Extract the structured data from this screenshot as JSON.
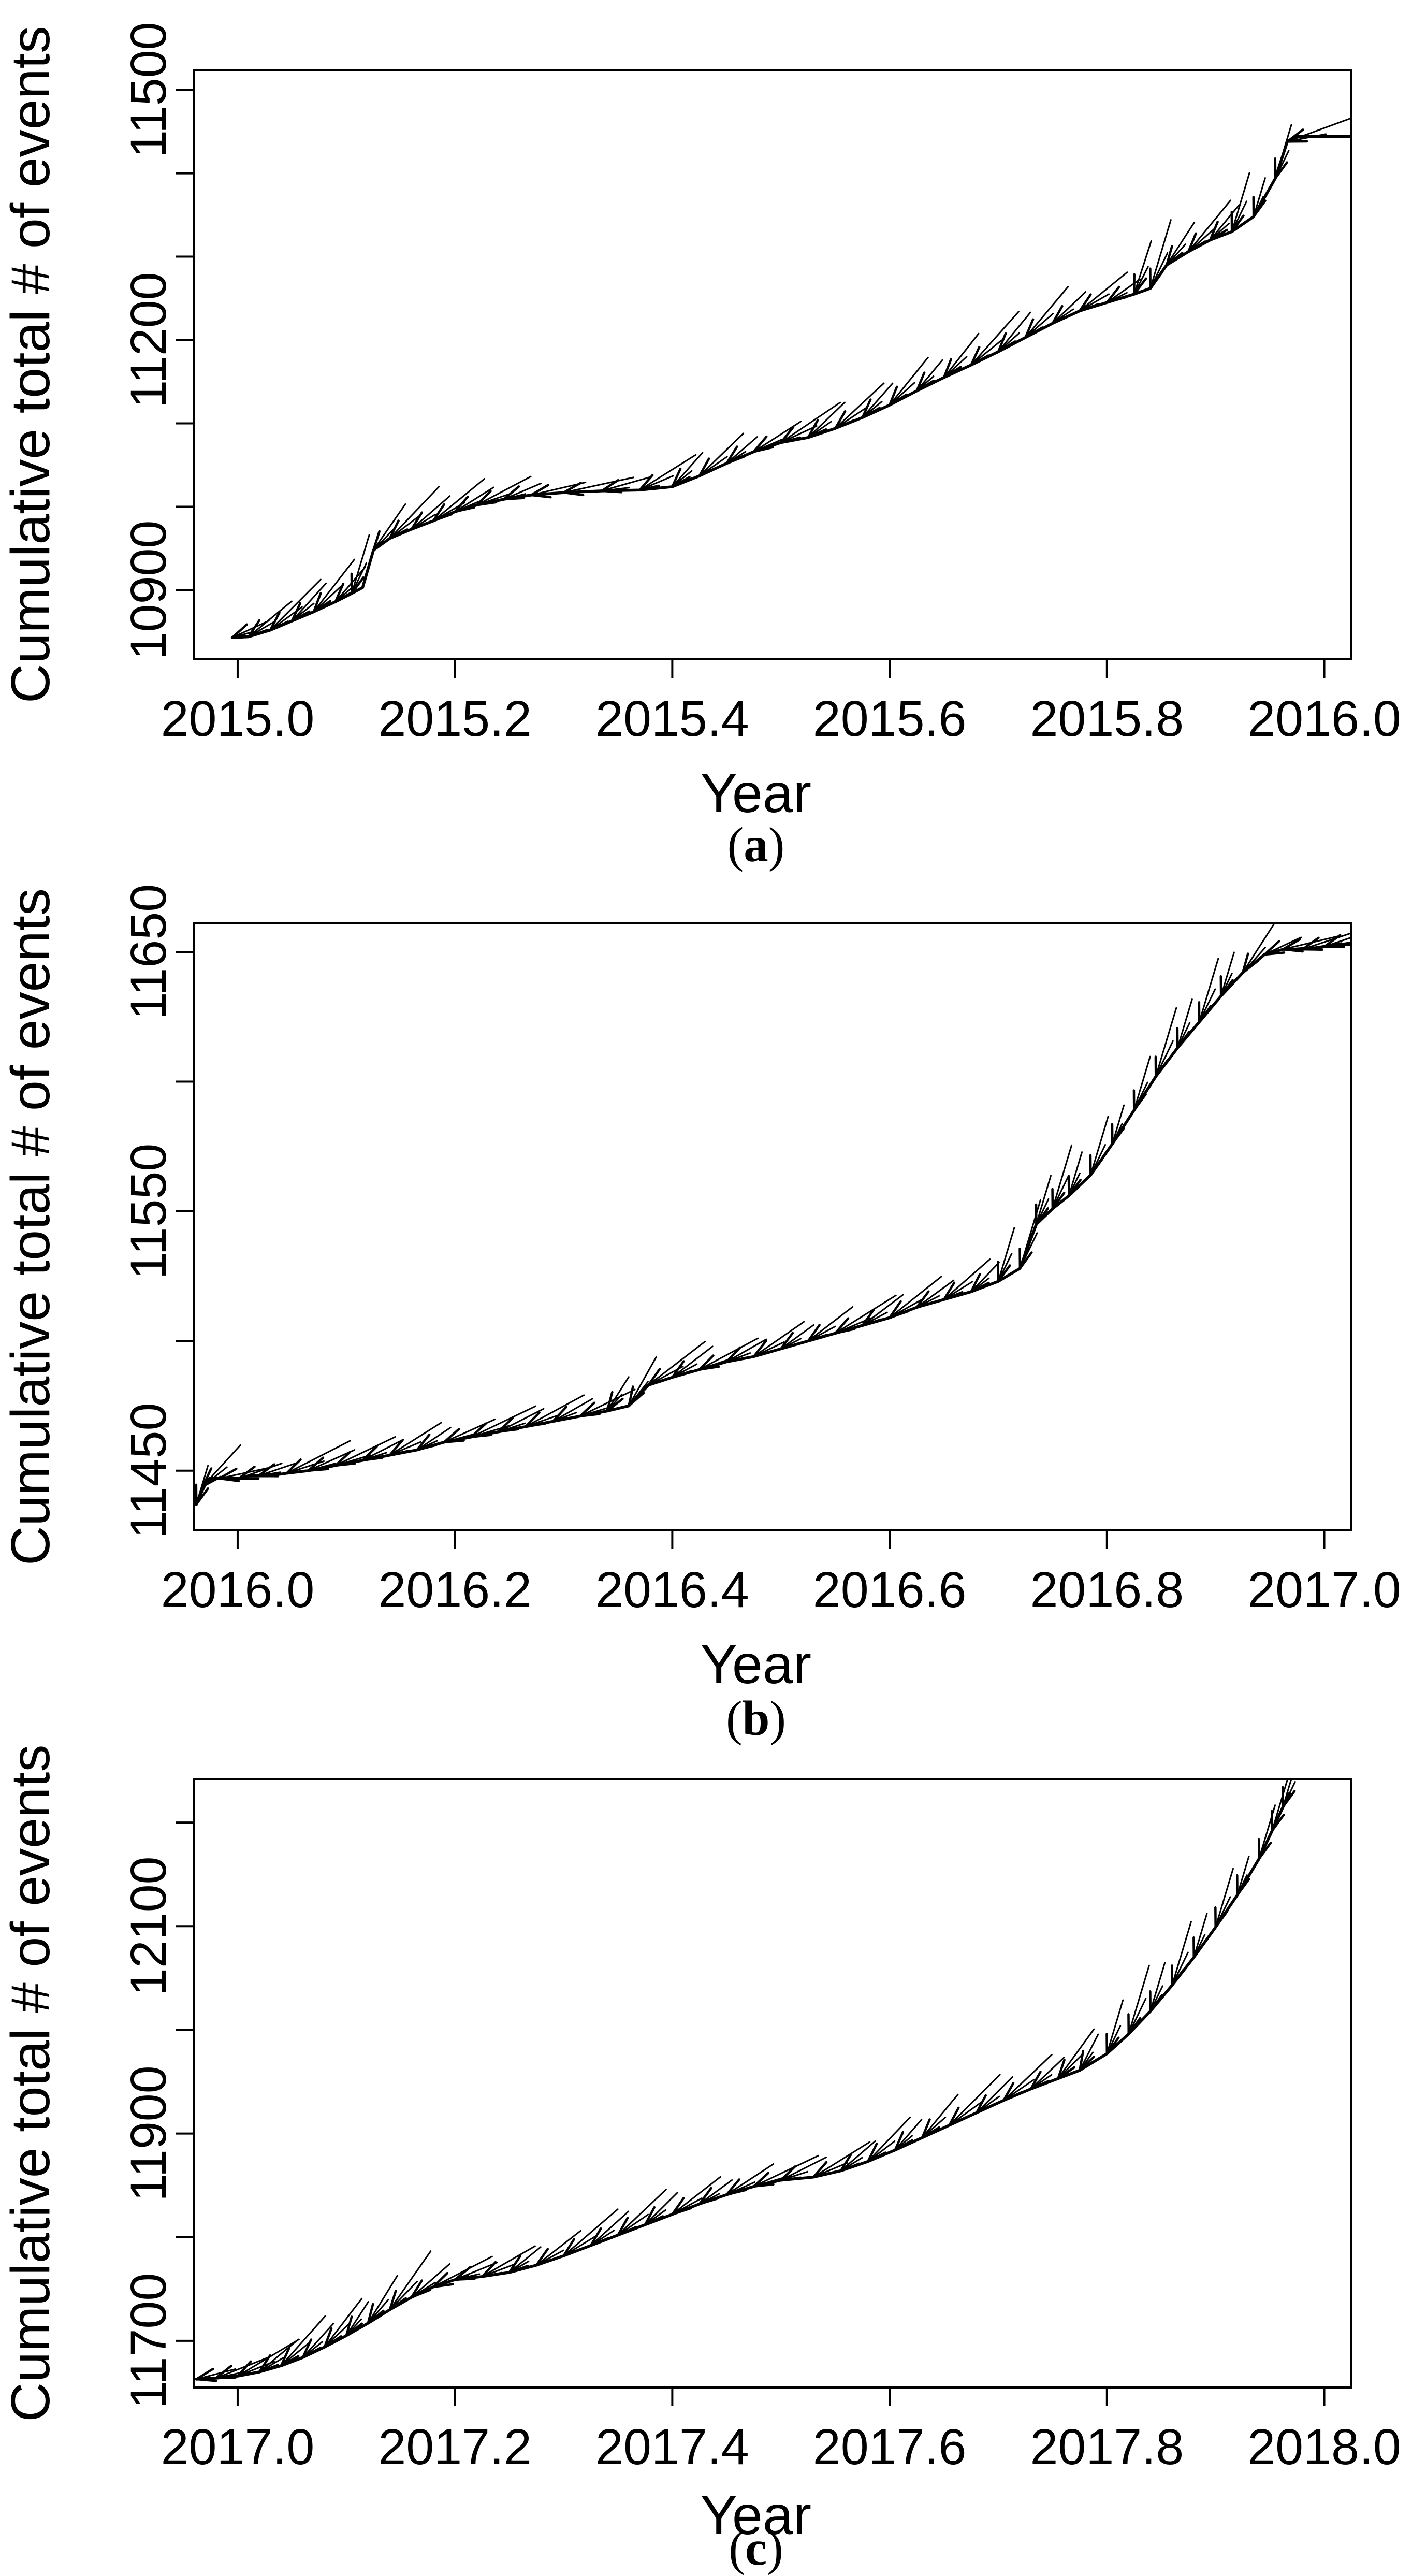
{
  "page": {
    "background_color": "#ffffff",
    "ink_color": "#000000",
    "description": "Three stacked base-R style plots of cumulative earthquake/event counts versus time, panels (a) 2015, (b) 2016, (c) 2017, each curve decorated with small feathered forecast arrows pointing along the curve"
  },
  "chart_data": [
    {
      "panel": "a",
      "type": "line",
      "title": "",
      "xlabel": "Year",
      "ylabel": "Cumulative total # of events",
      "caption_letter": "a",
      "caption_text": "(a)",
      "legend": "none",
      "grid": false,
      "marker_style": "feathered-arrow-barbs-along-curve",
      "xlim": [
        2014.96,
        2016.025
      ],
      "ylim": [
        10817,
        11524
      ],
      "x_ticks": [
        {
          "v": 2015.0,
          "label": "2015.0"
        },
        {
          "v": 2015.2,
          "label": "2015.2"
        },
        {
          "v": 2015.4,
          "label": "2015.4"
        },
        {
          "v": 2015.6,
          "label": "2015.6"
        },
        {
          "v": 2015.8,
          "label": "2015.8"
        },
        {
          "v": 2016.0,
          "label": "2016.0"
        }
      ],
      "y_ticks": [
        {
          "v": 10900,
          "label": "10900"
        },
        {
          "v": 11000,
          "label": ""
        },
        {
          "v": 11100,
          "label": ""
        },
        {
          "v": 11200,
          "label": "11200"
        },
        {
          "v": 11300,
          "label": ""
        },
        {
          "v": 11400,
          "label": ""
        },
        {
          "v": 11500,
          "label": "11500"
        }
      ],
      "points": [
        [
          2014.995,
          10843
        ],
        [
          2015.01,
          10844
        ],
        [
          2015.03,
          10852
        ],
        [
          2015.05,
          10863
        ],
        [
          2015.07,
          10874
        ],
        [
          2015.09,
          10886
        ],
        [
          2015.105,
          10896
        ],
        [
          2015.115,
          10903
        ],
        [
          2015.125,
          10948
        ],
        [
          2015.14,
          10962
        ],
        [
          2015.16,
          10973
        ],
        [
          2015.18,
          10983
        ],
        [
          2015.2,
          10994
        ],
        [
          2015.22,
          11002
        ],
        [
          2015.245,
          11009
        ],
        [
          2015.27,
          11014
        ],
        [
          2015.3,
          11017
        ],
        [
          2015.335,
          11019
        ],
        [
          2015.37,
          11020
        ],
        [
          2015.4,
          11024
        ],
        [
          2015.425,
          11037
        ],
        [
          2015.45,
          11052
        ],
        [
          2015.475,
          11066
        ],
        [
          2015.5,
          11077
        ],
        [
          2015.525,
          11083
        ],
        [
          2015.55,
          11094
        ],
        [
          2015.575,
          11107
        ],
        [
          2015.6,
          11122
        ],
        [
          2015.625,
          11139
        ],
        [
          2015.65,
          11155
        ],
        [
          2015.675,
          11170
        ],
        [
          2015.7,
          11186
        ],
        [
          2015.725,
          11203
        ],
        [
          2015.75,
          11220
        ],
        [
          2015.775,
          11235
        ],
        [
          2015.8,
          11245
        ],
        [
          2015.825,
          11255
        ],
        [
          2015.84,
          11262
        ],
        [
          2015.855,
          11290
        ],
        [
          2015.875,
          11306
        ],
        [
          2015.895,
          11320
        ],
        [
          2015.915,
          11330
        ],
        [
          2015.935,
          11348
        ],
        [
          2015.955,
          11394
        ],
        [
          2015.966,
          11438
        ],
        [
          2015.975,
          11444
        ],
        [
          2016.025,
          11444
        ]
      ]
    },
    {
      "panel": "b",
      "type": "line",
      "title": "",
      "xlabel": "Year",
      "ylabel": "Cumulative total # of events",
      "caption_letter": "b",
      "caption_text": "(b)",
      "legend": "none",
      "grid": false,
      "marker_style": "feathered-arrow-barbs-along-curve",
      "xlim": [
        2015.96,
        2017.025
      ],
      "ylim": [
        11427,
        11661
      ],
      "x_ticks": [
        {
          "v": 2016.0,
          "label": "2016.0"
        },
        {
          "v": 2016.2,
          "label": "2016.2"
        },
        {
          "v": 2016.4,
          "label": "2016.4"
        },
        {
          "v": 2016.6,
          "label": "2016.6"
        },
        {
          "v": 2016.8,
          "label": "2016.8"
        },
        {
          "v": 2017.0,
          "label": "2017.0"
        }
      ],
      "y_ticks": [
        {
          "v": 11450,
          "label": "11450"
        },
        {
          "v": 11500,
          "label": ""
        },
        {
          "v": 11550,
          "label": "11550"
        },
        {
          "v": 11600,
          "label": ""
        },
        {
          "v": 11650,
          "label": "11650"
        }
      ],
      "points": [
        [
          2015.962,
          11437
        ],
        [
          2015.968,
          11444
        ],
        [
          2015.974,
          11447
        ],
        [
          2015.983,
          11447
        ],
        [
          2015.992,
          11447
        ],
        [
          2016.001,
          11447
        ],
        [
          2016.01,
          11448
        ],
        [
          2016.019,
          11448
        ],
        [
          2016.028,
          11448
        ],
        [
          2016.045,
          11449
        ],
        [
          2016.065,
          11450
        ],
        [
          2016.09,
          11452
        ],
        [
          2016.115,
          11454
        ],
        [
          2016.14,
          11456
        ],
        [
          2016.165,
          11458
        ],
        [
          2016.19,
          11461
        ],
        [
          2016.215,
          11463
        ],
        [
          2016.24,
          11465
        ],
        [
          2016.265,
          11467
        ],
        [
          2016.29,
          11469
        ],
        [
          2016.315,
          11471
        ],
        [
          2016.34,
          11473
        ],
        [
          2016.36,
          11475
        ],
        [
          2016.378,
          11483
        ],
        [
          2016.4,
          11486
        ],
        [
          2016.425,
          11489
        ],
        [
          2016.45,
          11492
        ],
        [
          2016.475,
          11494
        ],
        [
          2016.5,
          11497
        ],
        [
          2016.525,
          11500
        ],
        [
          2016.55,
          11503
        ],
        [
          2016.575,
          11506
        ],
        [
          2016.6,
          11509
        ],
        [
          2016.625,
          11513
        ],
        [
          2016.65,
          11516
        ],
        [
          2016.675,
          11519
        ],
        [
          2016.7,
          11523
        ],
        [
          2016.72,
          11528
        ],
        [
          2016.735,
          11545
        ],
        [
          2016.75,
          11551
        ],
        [
          2016.765,
          11556
        ],
        [
          2016.785,
          11564
        ],
        [
          2016.805,
          11576
        ],
        [
          2016.825,
          11589
        ],
        [
          2016.845,
          11602
        ],
        [
          2016.865,
          11613
        ],
        [
          2016.885,
          11623
        ],
        [
          2016.905,
          11633
        ],
        [
          2016.925,
          11642
        ],
        [
          2016.945,
          11649
        ],
        [
          2016.962,
          11651
        ],
        [
          2016.98,
          11651
        ],
        [
          2017.0,
          11652
        ],
        [
          2017.025,
          11653
        ]
      ]
    },
    {
      "panel": "c",
      "type": "line",
      "title": "",
      "xlabel": "Year",
      "ylabel": "Cumulative total # of events",
      "caption_letter": "c",
      "caption_text": "(c)",
      "legend": "none",
      "grid": false,
      "marker_style": "feathered-arrow-barbs-along-curve",
      "xlim": [
        2016.96,
        2018.025
      ],
      "ylim": [
        11655,
        12242
      ],
      "x_ticks": [
        {
          "v": 2017.0,
          "label": "2017.0"
        },
        {
          "v": 2017.2,
          "label": "2017.2"
        },
        {
          "v": 2017.4,
          "label": "2017.4"
        },
        {
          "v": 2017.6,
          "label": "2017.6"
        },
        {
          "v": 2017.8,
          "label": "2017.8"
        },
        {
          "v": 2018.0,
          "label": "2018.0"
        }
      ],
      "y_ticks": [
        {
          "v": 11700,
          "label": "11700"
        },
        {
          "v": 11800,
          "label": ""
        },
        {
          "v": 11900,
          "label": "11900"
        },
        {
          "v": 12000,
          "label": ""
        },
        {
          "v": 12100,
          "label": "12100"
        },
        {
          "v": 12200,
          "label": ""
        }
      ],
      "points": [
        [
          2016.962,
          11663
        ],
        [
          2016.98,
          11664
        ],
        [
          2017.0,
          11666
        ],
        [
          2017.02,
          11670
        ],
        [
          2017.04,
          11676
        ],
        [
          2017.06,
          11684
        ],
        [
          2017.08,
          11694
        ],
        [
          2017.1,
          11705
        ],
        [
          2017.12,
          11717
        ],
        [
          2017.14,
          11730
        ],
        [
          2017.16,
          11742
        ],
        [
          2017.18,
          11752
        ],
        [
          2017.2,
          11759
        ],
        [
          2017.225,
          11762
        ],
        [
          2017.25,
          11766
        ],
        [
          2017.275,
          11773
        ],
        [
          2017.3,
          11782
        ],
        [
          2017.325,
          11792
        ],
        [
          2017.35,
          11802
        ],
        [
          2017.375,
          11812
        ],
        [
          2017.4,
          11822
        ],
        [
          2017.425,
          11832
        ],
        [
          2017.45,
          11841
        ],
        [
          2017.475,
          11849
        ],
        [
          2017.5,
          11855
        ],
        [
          2017.53,
          11858
        ],
        [
          2017.555,
          11864
        ],
        [
          2017.58,
          11873
        ],
        [
          2017.605,
          11884
        ],
        [
          2017.63,
          11896
        ],
        [
          2017.655,
          11908
        ],
        [
          2017.68,
          11920
        ],
        [
          2017.705,
          11932
        ],
        [
          2017.73,
          11943
        ],
        [
          2017.755,
          11953
        ],
        [
          2017.775,
          11961
        ],
        [
          2017.8,
          11977
        ],
        [
          2017.82,
          11996
        ],
        [
          2017.84,
          12018
        ],
        [
          2017.86,
          12043
        ],
        [
          2017.88,
          12070
        ],
        [
          2017.9,
          12099
        ],
        [
          2017.92,
          12130
        ],
        [
          2017.94,
          12165
        ],
        [
          2017.952,
          12192
        ],
        [
          2017.962,
          12215
        ],
        [
          2017.968,
          12228
        ]
      ]
    }
  ]
}
